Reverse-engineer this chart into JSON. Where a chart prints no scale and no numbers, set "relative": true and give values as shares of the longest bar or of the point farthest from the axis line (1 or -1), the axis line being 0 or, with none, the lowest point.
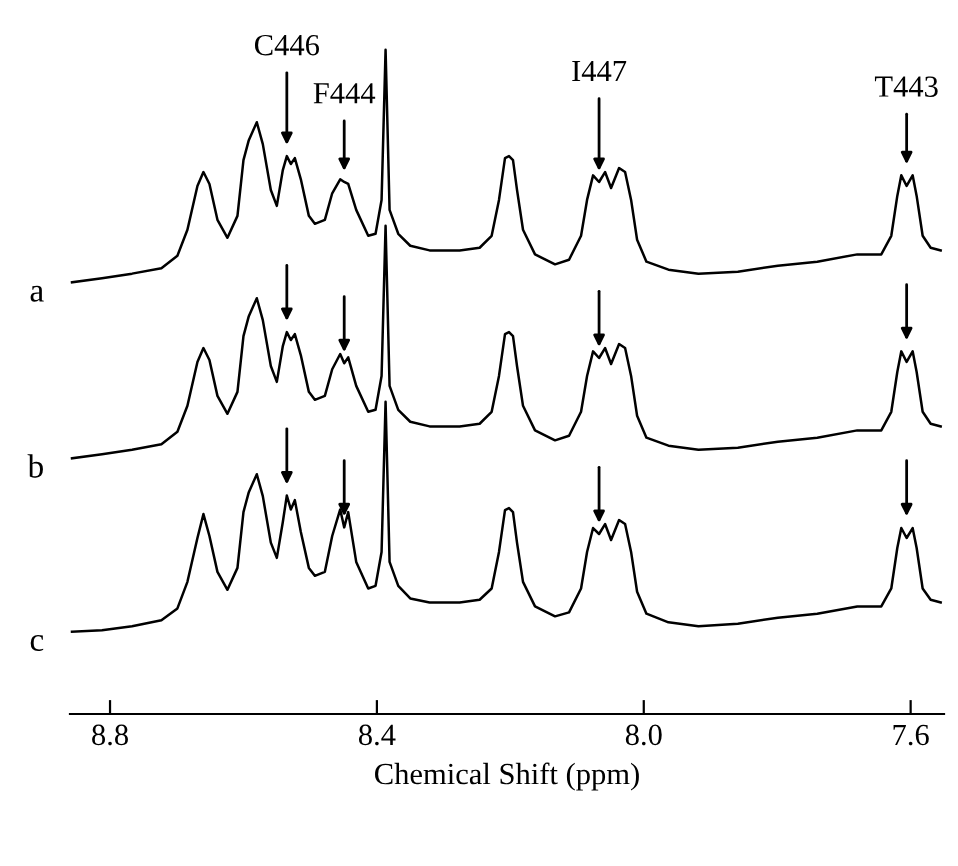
{
  "chart_data": {
    "type": "line",
    "relative": true,
    "xlabel": "Chemical Shift (ppm)",
    "xlim": [
      8.86,
      7.55
    ],
    "xticks": [
      {
        "value": 8.8,
        "label": "8.8"
      },
      {
        "value": 8.4,
        "label": "8.4"
      },
      {
        "value": 8.0,
        "label": "8.0"
      },
      {
        "value": 7.6,
        "label": "7.6"
      }
    ],
    "x": [
      8.857,
      8.812,
      8.767,
      8.723,
      8.699,
      8.684,
      8.669,
      8.66,
      8.651,
      8.639,
      8.624,
      8.609,
      8.6,
      8.592,
      8.58,
      8.571,
      8.559,
      8.55,
      8.541,
      8.535,
      8.529,
      8.523,
      8.514,
      8.502,
      8.493,
      8.478,
      8.467,
      8.455,
      8.449,
      8.443,
      8.431,
      8.413,
      8.402,
      8.393,
      8.387,
      8.381,
      8.368,
      8.35,
      8.321,
      8.276,
      8.246,
      8.228,
      8.217,
      8.208,
      8.202,
      8.196,
      8.19,
      8.181,
      8.163,
      8.133,
      8.112,
      8.094,
      8.085,
      8.076,
      8.067,
      8.058,
      8.049,
      8.037,
      8.028,
      8.019,
      8.01,
      7.996,
      7.963,
      7.918,
      7.859,
      7.799,
      7.74,
      7.68,
      7.644,
      7.629,
      7.62,
      7.614,
      7.606,
      7.597,
      7.591,
      7.582,
      7.57,
      7.555
    ],
    "series": [
      {
        "name": "a",
        "color": "#000000",
        "values": [
          0.65,
          0.656,
          0.663,
          0.671,
          0.69,
          0.729,
          0.795,
          0.816,
          0.798,
          0.744,
          0.717,
          0.75,
          0.834,
          0.864,
          0.891,
          0.858,
          0.789,
          0.765,
          0.819,
          0.84,
          0.828,
          0.837,
          0.805,
          0.75,
          0.738,
          0.744,
          0.784,
          0.805,
          0.801,
          0.798,
          0.759,
          0.72,
          0.723,
          0.774,
          1.0,
          0.759,
          0.723,
          0.705,
          0.698,
          0.698,
          0.702,
          0.72,
          0.774,
          0.837,
          0.84,
          0.834,
          0.789,
          0.729,
          0.692,
          0.677,
          0.684,
          0.72,
          0.774,
          0.811,
          0.801,
          0.816,
          0.792,
          0.822,
          0.816,
          0.774,
          0.714,
          0.681,
          0.669,
          0.663,
          0.666,
          0.675,
          0.681,
          0.692,
          0.692,
          0.72,
          0.78,
          0.811,
          0.795,
          0.811,
          0.78,
          0.72,
          0.702,
          0.698
        ]
      },
      {
        "name": "b",
        "color": "#000000",
        "values": [
          0.385,
          0.391,
          0.398,
          0.406,
          0.425,
          0.464,
          0.53,
          0.551,
          0.533,
          0.479,
          0.452,
          0.485,
          0.569,
          0.599,
          0.626,
          0.593,
          0.524,
          0.5,
          0.554,
          0.575,
          0.563,
          0.572,
          0.54,
          0.485,
          0.473,
          0.479,
          0.519,
          0.542,
          0.528,
          0.537,
          0.494,
          0.455,
          0.458,
          0.509,
          0.735,
          0.494,
          0.458,
          0.44,
          0.433,
          0.433,
          0.437,
          0.455,
          0.509,
          0.572,
          0.575,
          0.569,
          0.524,
          0.464,
          0.427,
          0.412,
          0.419,
          0.455,
          0.509,
          0.546,
          0.536,
          0.551,
          0.527,
          0.557,
          0.551,
          0.509,
          0.449,
          0.416,
          0.404,
          0.398,
          0.401,
          0.41,
          0.416,
          0.427,
          0.427,
          0.455,
          0.515,
          0.546,
          0.53,
          0.546,
          0.515,
          0.455,
          0.437,
          0.433
        ]
      },
      {
        "name": "c",
        "color": "#000000",
        "values": [
          0.124,
          0.126,
          0.132,
          0.141,
          0.159,
          0.199,
          0.265,
          0.301,
          0.268,
          0.214,
          0.187,
          0.22,
          0.304,
          0.334,
          0.361,
          0.328,
          0.258,
          0.235,
          0.289,
          0.329,
          0.308,
          0.322,
          0.274,
          0.22,
          0.208,
          0.214,
          0.268,
          0.308,
          0.281,
          0.304,
          0.229,
          0.189,
          0.193,
          0.244,
          0.47,
          0.229,
          0.193,
          0.174,
          0.168,
          0.168,
          0.172,
          0.189,
          0.244,
          0.307,
          0.31,
          0.304,
          0.258,
          0.199,
          0.162,
          0.147,
          0.153,
          0.189,
          0.244,
          0.28,
          0.271,
          0.286,
          0.262,
          0.292,
          0.286,
          0.244,
          0.184,
          0.151,
          0.138,
          0.132,
          0.136,
          0.145,
          0.151,
          0.162,
          0.162,
          0.189,
          0.25,
          0.28,
          0.265,
          0.28,
          0.25,
          0.189,
          0.172,
          0.168
        ]
      }
    ],
    "annotations": [
      {
        "text": "C446",
        "x": 8.535,
        "y": 0.84
      },
      {
        "text": "F444",
        "x": 8.449,
        "y": 0.801
      },
      {
        "text": "I447",
        "x": 8.067,
        "y": 0.801
      },
      {
        "text": "T443",
        "x": 7.606,
        "y": 0.811
      }
    ]
  }
}
